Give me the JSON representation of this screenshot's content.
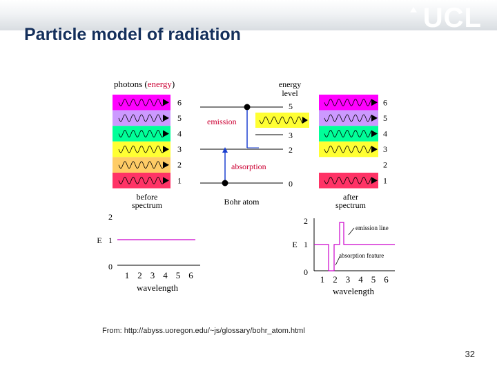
{
  "slide": {
    "title": "Particle model of radiation",
    "logo": "UCL",
    "source": "From: http://abyss.uoregon.edu/~js/glossary/bohr_atom.html",
    "page_number": "32"
  },
  "diagram": {
    "photons_label_a": "photons (",
    "photons_label_b": "energy",
    "photons_label_c": ")",
    "energy_level_label_1": "energy",
    "energy_level_label_2": "level",
    "emission_label": "emission",
    "absorption_label": "absorption",
    "bohr_atom_label": "Bohr atom",
    "before_label_1": "before",
    "before_label_2": "spectrum",
    "after_label_1": "after",
    "after_label_2": "spectrum",
    "band_numbers": [
      "6",
      "5",
      "4",
      "3",
      "2",
      "1"
    ],
    "band_colors": [
      "#ff00ff",
      "#cc99ff",
      "#00ff99",
      "#ffff33",
      "#ffcc66",
      "#ff3366"
    ],
    "after_band_numbers": [
      "6",
      "5",
      "4",
      "3",
      "2",
      "1"
    ],
    "level_numbers": [
      "5",
      "3",
      "2",
      "0"
    ],
    "graph_left": {
      "y_ticks": [
        "2",
        "1",
        "0"
      ],
      "y_label": "E",
      "x_ticks": [
        "1",
        "2",
        "3",
        "4",
        "5",
        "6"
      ],
      "x_label": "wavelength"
    },
    "graph_right": {
      "y_ticks": [
        "2",
        "1",
        "0"
      ],
      "y_label": "E",
      "x_ticks": [
        "1",
        "2",
        "3",
        "4",
        "5",
        "6"
      ],
      "x_label": "wavelength",
      "emission_line_label": "emission line",
      "absorption_feature_label": "absorption feature"
    }
  }
}
